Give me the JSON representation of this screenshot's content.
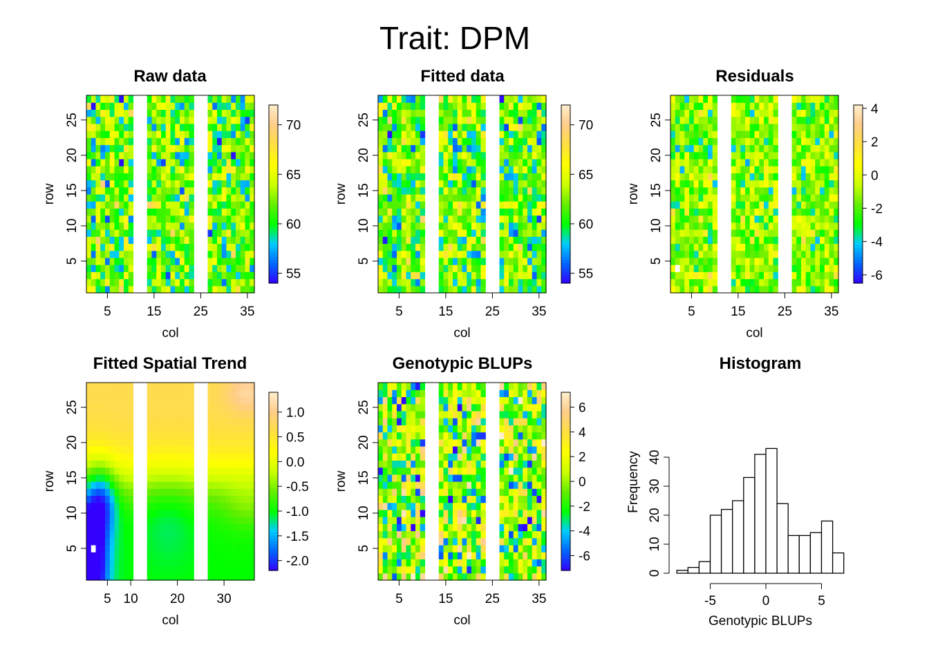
{
  "title": "Trait: DPM",
  "palette": [
    "#3300ff",
    "#0066ff",
    "#00ccff",
    "#00ff00",
    "#66ee00",
    "#ccff00",
    "#ffff00",
    "#ffe040",
    "#ffcc88",
    "#ffeecc"
  ],
  "chart_data": [
    {
      "type": "heatmap",
      "title": "Raw data",
      "xlabel": "col",
      "ylabel": "row",
      "x_ticks": [
        5,
        15,
        25,
        35
      ],
      "y_ticks": [
        5,
        10,
        15,
        20,
        25
      ],
      "xlim": [
        1,
        36
      ],
      "ylim": [
        1,
        28
      ],
      "empty_cols": [
        11,
        12,
        13,
        24,
        25,
        26
      ],
      "colorbar": {
        "range": [
          54,
          72
        ],
        "ticks": [
          55,
          60,
          65,
          70
        ],
        "tick_labels": [
          "55",
          "60",
          "65",
          "70"
        ]
      }
    },
    {
      "type": "heatmap",
      "title": "Fitted data",
      "xlabel": "col",
      "ylabel": "row",
      "x_ticks": [
        5,
        15,
        25,
        35
      ],
      "y_ticks": [
        5,
        10,
        15,
        20,
        25
      ],
      "xlim": [
        1,
        36
      ],
      "ylim": [
        1,
        28
      ],
      "empty_cols": [
        11,
        12,
        13,
        24,
        25,
        26
      ],
      "colorbar": {
        "range": [
          54,
          72
        ],
        "ticks": [
          55,
          60,
          65,
          70
        ],
        "tick_labels": [
          "55",
          "60",
          "65",
          "70"
        ]
      }
    },
    {
      "type": "heatmap",
      "title": "Residuals",
      "xlabel": "col",
      "ylabel": "row",
      "x_ticks": [
        5,
        15,
        25,
        35
      ],
      "y_ticks": [
        5,
        10,
        15,
        20,
        25
      ],
      "xlim": [
        1,
        36
      ],
      "ylim": [
        1,
        28
      ],
      "empty_cols": [
        11,
        12,
        13,
        24,
        25,
        26
      ],
      "colorbar": {
        "range": [
          -6.5,
          4.2
        ],
        "ticks": [
          -6,
          -4,
          -2,
          0,
          2,
          4
        ],
        "tick_labels": [
          "-6",
          "-4",
          "-2",
          "0",
          "2",
          "4"
        ]
      }
    },
    {
      "type": "heatmap",
      "title": "Fitted Spatial Trend",
      "xlabel": "col",
      "ylabel": "row",
      "x_ticks": [
        5,
        10,
        20,
        30
      ],
      "y_ticks": [
        5,
        10,
        15,
        20,
        25
      ],
      "xlim": [
        1,
        36
      ],
      "ylim": [
        1,
        28
      ],
      "empty_cols": [
        11,
        12,
        13,
        24,
        25,
        26
      ],
      "colorbar": {
        "range": [
          -2.2,
          1.4
        ],
        "ticks": [
          -2.0,
          -1.5,
          -1.0,
          -0.5,
          0.0,
          0.5,
          1.0
        ],
        "tick_labels": [
          "-2.0",
          "-1.5",
          "-1.0",
          "-0.5",
          "0.0",
          "0.5",
          "1.0"
        ]
      }
    },
    {
      "type": "heatmap",
      "title": "Genotypic BLUPs",
      "xlabel": "col",
      "ylabel": "row",
      "x_ticks": [
        5,
        15,
        25,
        35
      ],
      "y_ticks": [
        5,
        10,
        15,
        20,
        25
      ],
      "xlim": [
        1,
        36
      ],
      "ylim": [
        1,
        28
      ],
      "empty_cols": [
        11,
        12,
        13,
        24,
        25,
        26
      ],
      "colorbar": {
        "range": [
          -7.2,
          7.2
        ],
        "ticks": [
          -6,
          -4,
          -2,
          0,
          2,
          4,
          6
        ],
        "tick_labels": [
          "-6",
          "-4",
          "-2",
          "0",
          "2",
          "4",
          "6"
        ]
      }
    },
    {
      "type": "bar",
      "title": "Histogram",
      "xlabel": "Genotypic BLUPs",
      "ylabel": "Frequency",
      "x_ticks": [
        -5,
        0,
        5
      ],
      "x_tick_labels": [
        "-5",
        "0",
        "5"
      ],
      "y_ticks": [
        0,
        10,
        20,
        30,
        40
      ],
      "xlim": [
        -8.5,
        7.5
      ],
      "ylim": [
        0,
        43
      ],
      "bin_edges": [
        -8,
        -7,
        -6,
        -5,
        -4,
        -3,
        -2,
        -1,
        0,
        1,
        2,
        3,
        4,
        5,
        6,
        7
      ],
      "counts": [
        1,
        2,
        4,
        20,
        22,
        25,
        33,
        41,
        43,
        24,
        13,
        13,
        14,
        18,
        7
      ]
    }
  ]
}
